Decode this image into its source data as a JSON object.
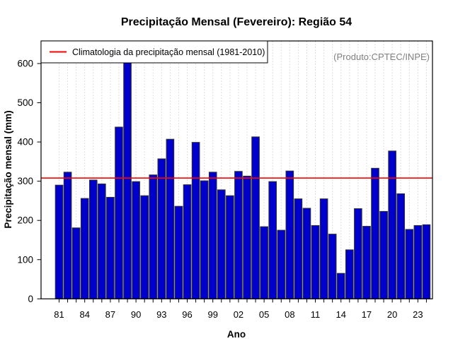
{
  "title": "Precipitação Mensal (Fevereiro): Região 54",
  "watermark": "(Produto:CPTEC/INPE)",
  "legend": {
    "label": "Climatologia da precipitação mensal (1981-2010)",
    "line_color": "#ff0000",
    "position": "top-left"
  },
  "colors": {
    "bar_fill": "#0000cc",
    "bar_border": "#303030",
    "climatology_line": "#ff0000",
    "gridline": "#d4d4d4",
    "axis": "#000000",
    "watermark_text": "#808080"
  },
  "chart_data": {
    "type": "bar",
    "title": "Precipitação Mensal (Fevereiro): Região 54",
    "xlabel": "Ano",
    "ylabel": "Precipitação mensal (mm)",
    "ylim": [
      0,
      657
    ],
    "yticks": [
      0,
      100,
      200,
      300,
      400,
      500,
      600
    ],
    "x_tick_labels": [
      "81",
      "84",
      "87",
      "90",
      "93",
      "96",
      "99",
      "02",
      "05",
      "08",
      "11",
      "14",
      "17",
      "20",
      "23"
    ],
    "x_tick_every": 3,
    "grid": "vertical-dashed",
    "legend_position": "top-left",
    "climatology_value": 308,
    "categories": [
      "1981",
      "1982",
      "1983",
      "1984",
      "1985",
      "1986",
      "1987",
      "1988",
      "1989",
      "1990",
      "1991",
      "1992",
      "1993",
      "1994",
      "1995",
      "1996",
      "1997",
      "1998",
      "1999",
      "2000",
      "2001",
      "2002",
      "2003",
      "2004",
      "2005",
      "2006",
      "2007",
      "2008",
      "2009",
      "2010",
      "2011",
      "2012",
      "2013",
      "2014",
      "2015",
      "2016",
      "2017",
      "2018",
      "2019",
      "2020",
      "2021",
      "2022",
      "2023",
      "2024"
    ],
    "series": [
      {
        "name": "Precipitação mensal (mm)",
        "values": [
          290,
          323,
          181,
          256,
          303,
          293,
          259,
          438,
          607,
          299,
          263,
          316,
          357,
          407,
          236,
          291,
          399,
          301,
          323,
          278,
          263,
          325,
          313,
          413,
          184,
          299,
          175,
          326,
          255,
          231,
          187,
          255,
          165,
          65,
          125,
          230,
          185,
          333,
          223,
          377,
          268,
          177,
          187,
          189
        ]
      }
    ]
  }
}
